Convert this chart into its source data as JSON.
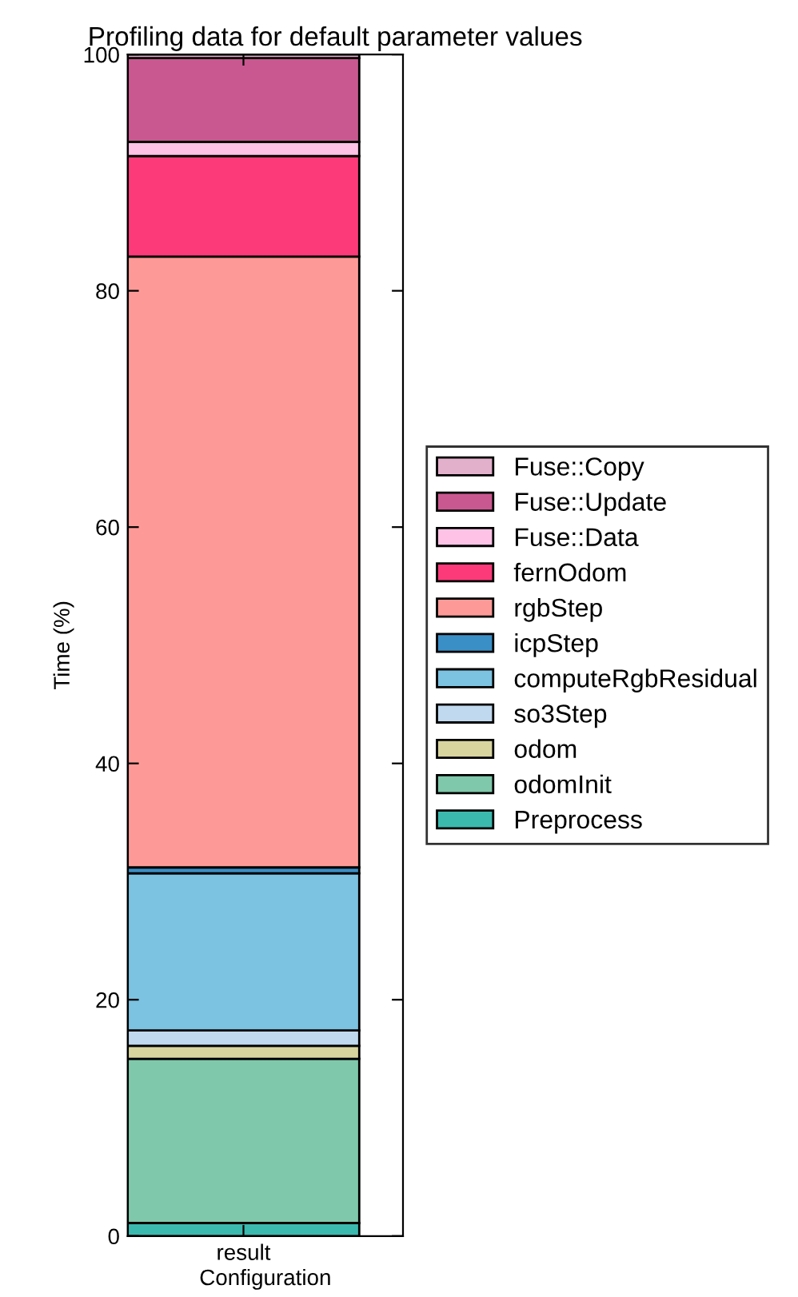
{
  "chart_data": {
    "type": "bar",
    "stacked": true,
    "title": "Profiling data for default parameter values",
    "xlabel": "Configuration",
    "ylabel": "Time (%)",
    "categories": [
      "result"
    ],
    "series": [
      {
        "name": "Preprocess",
        "color": "#3cb9ae",
        "values": [
          1.1
        ]
      },
      {
        "name": "odomInit",
        "color": "#80c8ab",
        "values": [
          13.9
        ]
      },
      {
        "name": "odom",
        "color": "#d8d59f",
        "values": [
          1.1
        ]
      },
      {
        "name": "so3Step",
        "color": "#c0d9ee",
        "values": [
          1.3
        ]
      },
      {
        "name": "computeRgbResidual",
        "color": "#7cc2e1",
        "values": [
          13.3
        ]
      },
      {
        "name": "icpStep",
        "color": "#3a8fc6",
        "values": [
          0.5
        ]
      },
      {
        "name": "rgbStep",
        "color": "#fd9a97",
        "values": [
          51.7
        ]
      },
      {
        "name": "fernOdom",
        "color": "#fc3a7a",
        "values": [
          8.5
        ]
      },
      {
        "name": "Fuse::Data",
        "color": "#fdc2e5",
        "values": [
          1.2
        ]
      },
      {
        "name": "Fuse::Update",
        "color": "#ca5890",
        "values": [
          7.1
        ]
      },
      {
        "name": "Fuse::Copy",
        "color": "#e3b0cb",
        "values": [
          0.3
        ]
      }
    ],
    "ylim": [
      0,
      100
    ],
    "yticks": [
      0,
      20,
      40,
      60,
      80,
      100
    ],
    "grid": false,
    "legend": "right"
  }
}
